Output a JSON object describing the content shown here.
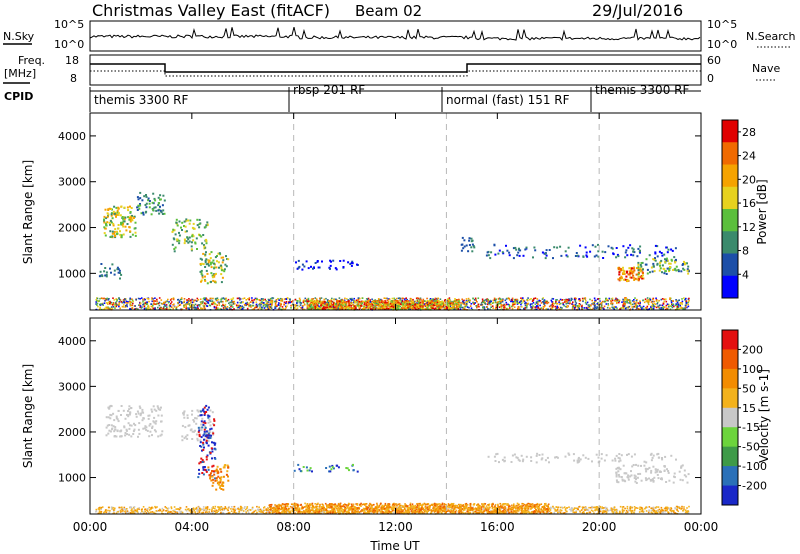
{
  "header": {
    "title": "Christmas Valley East (fitACF)",
    "beam": "Beam 02",
    "date": "29/Jul/2016"
  },
  "top_panels": {
    "nsky_label": "N.Sky",
    "nsky_ticks": [
      "10^5",
      "10^0"
    ],
    "nsky_right_ticks": [
      "10^5",
      "10^0"
    ],
    "nsearch_label": "N.Search",
    "freq_label_1": "Freq.",
    "freq_label_2": "[MHz]",
    "freq_ticks": [
      "18",
      "8"
    ],
    "nave_ticks": [
      "60",
      "0"
    ],
    "nave_label": "Nave",
    "cpid_label": "CPID",
    "cpid_segments": [
      "themis 3300 RF",
      "rbsp 201 RF",
      "normal (fast) 151 RF",
      "themis 3300 RF"
    ]
  },
  "colors": {
    "power_scale": [
      "#0000ff",
      "#1c4fa8",
      "#3a8a6c",
      "#5bbf3c",
      "#e7d21f",
      "#f5a300",
      "#f06a00",
      "#e00000"
    ],
    "velocity_scale": [
      "#1a28c8",
      "#2a70b8",
      "#3e9a48",
      "#6cd43c",
      "#c8c8c8",
      "#f3b21c",
      "#f28c00",
      "#ef5a00",
      "#e41010"
    ]
  },
  "chart_data": [
    {
      "type": "heatmap",
      "name": "power",
      "ylabel": "Slant Range [km]",
      "y_ticks": [
        1000,
        2000,
        3000,
        4000
      ],
      "ylim": [
        200,
        4500
      ],
      "x_ticks": [
        "00:00",
        "04:00",
        "08:00",
        "12:00",
        "16:00",
        "20:00",
        "00:00"
      ],
      "xlim_hours": [
        0,
        24
      ],
      "colorbar_label": "Power [dB]",
      "colorbar_ticks": [
        "4",
        "8",
        "12",
        "16",
        "20",
        "24",
        "28"
      ],
      "colorbar_range": [
        0,
        30
      ],
      "mode_change_times": [
        "08:00",
        "14:00",
        "20:00"
      ]
    },
    {
      "type": "heatmap",
      "name": "velocity",
      "ylabel": "Slant Range [km]",
      "y_ticks": [
        1000,
        2000,
        3000,
        4000
      ],
      "ylim": [
        200,
        4500
      ],
      "x_ticks": [
        "00:00",
        "04:00",
        "08:00",
        "12:00",
        "16:00",
        "20:00",
        "00:00"
      ],
      "xlim_hours": [
        0,
        24
      ],
      "xlabel": "Time UT",
      "colorbar_label": "Velocity [m s-1]",
      "colorbar_ticks": [
        "200",
        "100",
        "50",
        "15",
        "-15",
        "-50",
        "-100",
        "-200"
      ],
      "colorbar_range": [
        -250,
        250
      ]
    }
  ]
}
